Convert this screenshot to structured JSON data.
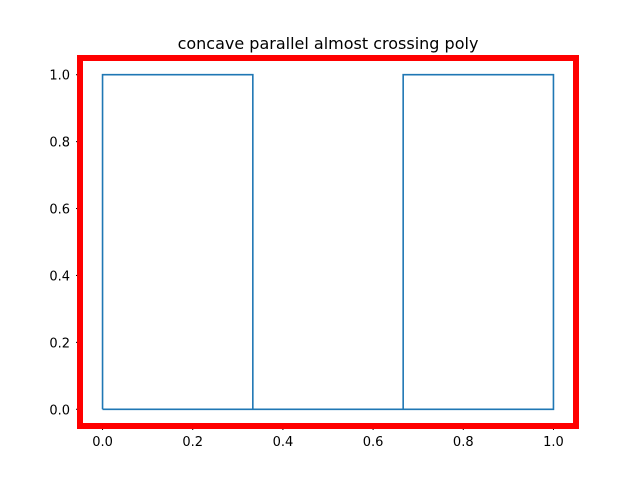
{
  "chart_data": {
    "type": "line",
    "title": "concave parallel almost crossing poly",
    "xlabel": "",
    "ylabel": "",
    "xlim": [
      -0.05,
      1.05
    ],
    "ylim": [
      -0.05,
      1.05
    ],
    "x_ticks": [
      0.0,
      0.2,
      0.4,
      0.6,
      0.8,
      1.0
    ],
    "x_tick_labels": [
      "0.0",
      "0.2",
      "0.4",
      "0.6",
      "0.8",
      "1.0"
    ],
    "y_ticks": [
      0.0,
      0.2,
      0.4,
      0.6,
      0.8,
      1.0
    ],
    "y_tick_labels": [
      "0.0",
      "0.2",
      "0.4",
      "0.6",
      "0.8",
      "1.0"
    ],
    "grid": false,
    "series": [
      {
        "color": "#1f77b4",
        "points": [
          [
            0.0,
            0.0
          ],
          [
            0.0,
            1.0
          ],
          [
            0.3333,
            1.0
          ],
          [
            0.3333,
            0.0
          ],
          [
            0.6667,
            0.0
          ],
          [
            0.6667,
            1.0
          ],
          [
            1.0,
            1.0
          ],
          [
            1.0,
            0.0
          ],
          [
            0.0,
            0.0
          ]
        ]
      }
    ],
    "highlight_frame_color": "#ff0000",
    "axis_color": "#000000"
  }
}
